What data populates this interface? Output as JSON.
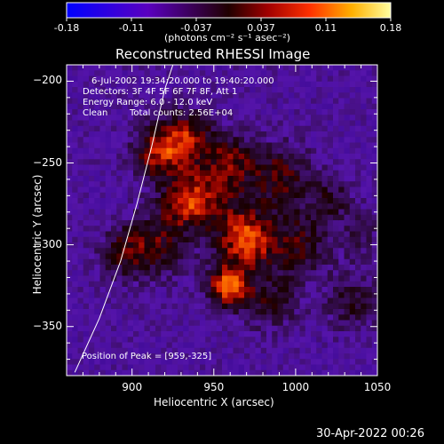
{
  "app": {
    "footer_timestamp": "30-Apr-2022 00:26"
  },
  "colorbar": {
    "ticks": [
      "-0.18",
      "-0.11",
      "-0.037",
      "0.037",
      "0.11",
      "0.18"
    ],
    "unit_label": "(photons cm⁻² s⁻¹ asec⁻²)",
    "range": [
      -0.18,
      0.18
    ]
  },
  "chart_data": {
    "type": "heatmap",
    "title": "Reconstructed RHESSI Image",
    "xlabel": "Heliocentric X (arcsec)",
    "ylabel": "Heliocentric Y (arcsec)",
    "xlim": [
      860,
      1050
    ],
    "ylim": [
      -380,
      -190
    ],
    "x_ticks": [
      900,
      950,
      1000,
      1050
    ],
    "y_ticks": [
      -200,
      -250,
      -300,
      -350
    ],
    "annotations": {
      "time_range": "6-Jul-2002 19:34:20.000 to 19:40:20.000",
      "detectors": "Detectors: 3F 4F 5F 6F 7F 8F, Att 1",
      "energy_range": "Energy Range: 6.0 - 12.0 keV",
      "method": "Clean",
      "total_counts": "Total counts: 2.56E+04",
      "peak": "Position of Peak = [959,-325]"
    },
    "peak_position": [
      959,
      -325
    ],
    "blobs": [
      {
        "x": 959,
        "y": -325,
        "amp": 1.0,
        "s": 9
      },
      {
        "x": 970,
        "y": -297,
        "amp": 0.92,
        "s": 12
      },
      {
        "x": 918,
        "y": -243,
        "amp": 0.78,
        "s": 12
      },
      {
        "x": 935,
        "y": -232,
        "amp": 0.6,
        "s": 10
      },
      {
        "x": 948,
        "y": -268,
        "amp": 0.58,
        "s": 16
      },
      {
        "x": 915,
        "y": -300,
        "amp": 0.5,
        "s": 14
      },
      {
        "x": 990,
        "y": -258,
        "amp": 0.55,
        "s": 14
      },
      {
        "x": 1002,
        "y": -300,
        "amp": 0.5,
        "s": 14
      },
      {
        "x": 1022,
        "y": -272,
        "amp": 0.38,
        "s": 10
      },
      {
        "x": 1035,
        "y": -335,
        "amp": 0.42,
        "s": 12
      },
      {
        "x": 985,
        "y": -335,
        "amp": 0.45,
        "s": 12
      },
      {
        "x": 895,
        "y": -305,
        "amp": 0.42,
        "s": 11
      },
      {
        "x": 932,
        "y": -275,
        "amp": 0.52,
        "s": 10
      },
      {
        "x": 960,
        "y": -245,
        "amp": 0.45,
        "s": 10
      },
      {
        "x": 1040,
        "y": -295,
        "amp": 0.3,
        "s": 9
      }
    ],
    "limb_curve": [
      [
        865,
        -378
      ],
      [
        880,
        -345
      ],
      [
        893,
        -310
      ],
      [
        903,
        -275
      ],
      [
        912,
        -240
      ],
      [
        920,
        -205
      ],
      [
        925,
        -190
      ]
    ]
  }
}
